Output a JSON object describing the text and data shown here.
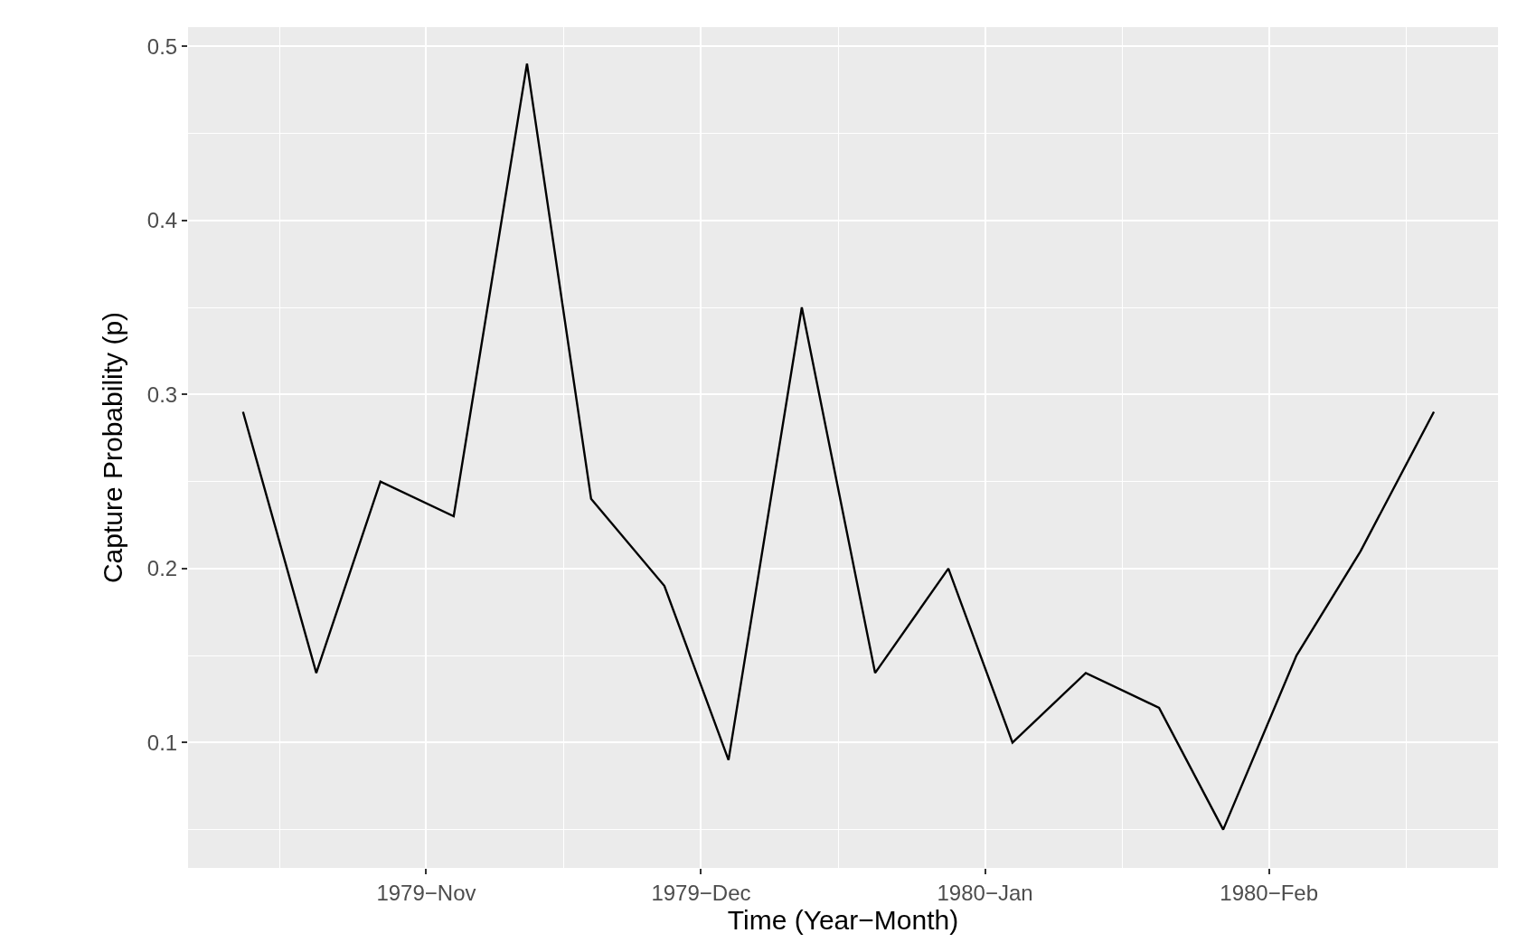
{
  "chart_data": {
    "type": "line",
    "xlabel": "Time (Year−Month)",
    "ylabel": "Capture Probability (p)",
    "x": [
      "1979-10-12",
      "1979-10-20",
      "1979-10-27",
      "1979-11-04",
      "1979-11-12",
      "1979-11-19",
      "1979-11-27",
      "1979-12-04",
      "1979-12-12",
      "1979-12-20",
      "1979-12-28",
      "1980-01-04",
      "1980-01-12",
      "1980-01-20",
      "1980-01-27",
      "1980-02-04",
      "1980-02-11",
      "1980-02-19"
    ],
    "series": [
      {
        "color": "#000000",
        "values": [
          0.29,
          0.14,
          0.25,
          0.23,
          0.49,
          0.24,
          0.19,
          0.09,
          0.35,
          0.14,
          0.2,
          0.1,
          0.14,
          0.12,
          0.05,
          0.15,
          0.21,
          0.29
        ]
      }
    ],
    "xlim": [
      "1979-10-06",
      "1980-02-26"
    ],
    "xticks": [
      {
        "value": "1979-10-16",
        "label": null
      },
      {
        "value": "1979-11-01",
        "label": "1979−Nov"
      },
      {
        "value": "1979-11-16",
        "label": null
      },
      {
        "value": "1979-12-01",
        "label": "1979−Dec"
      },
      {
        "value": "1979-12-16",
        "label": null
      },
      {
        "value": "1980-01-01",
        "label": "1980−Jan"
      },
      {
        "value": "1980-01-16",
        "label": null
      },
      {
        "value": "1980-02-01",
        "label": "1980−Feb"
      },
      {
        "value": "1980-02-16",
        "label": null
      }
    ],
    "ylim": [
      0.028,
      0.511
    ],
    "yticks": [
      {
        "value": 0.05,
        "label": null
      },
      0.1,
      {
        "value": 0.15,
        "label": null
      },
      0.2,
      {
        "value": 0.25,
        "label": null
      },
      0.3,
      {
        "value": 0.35,
        "label": null
      },
      0.4,
      {
        "value": 0.45,
        "label": null
      },
      0.5
    ],
    "grid": true,
    "marker": "none",
    "line_style": "solid"
  }
}
